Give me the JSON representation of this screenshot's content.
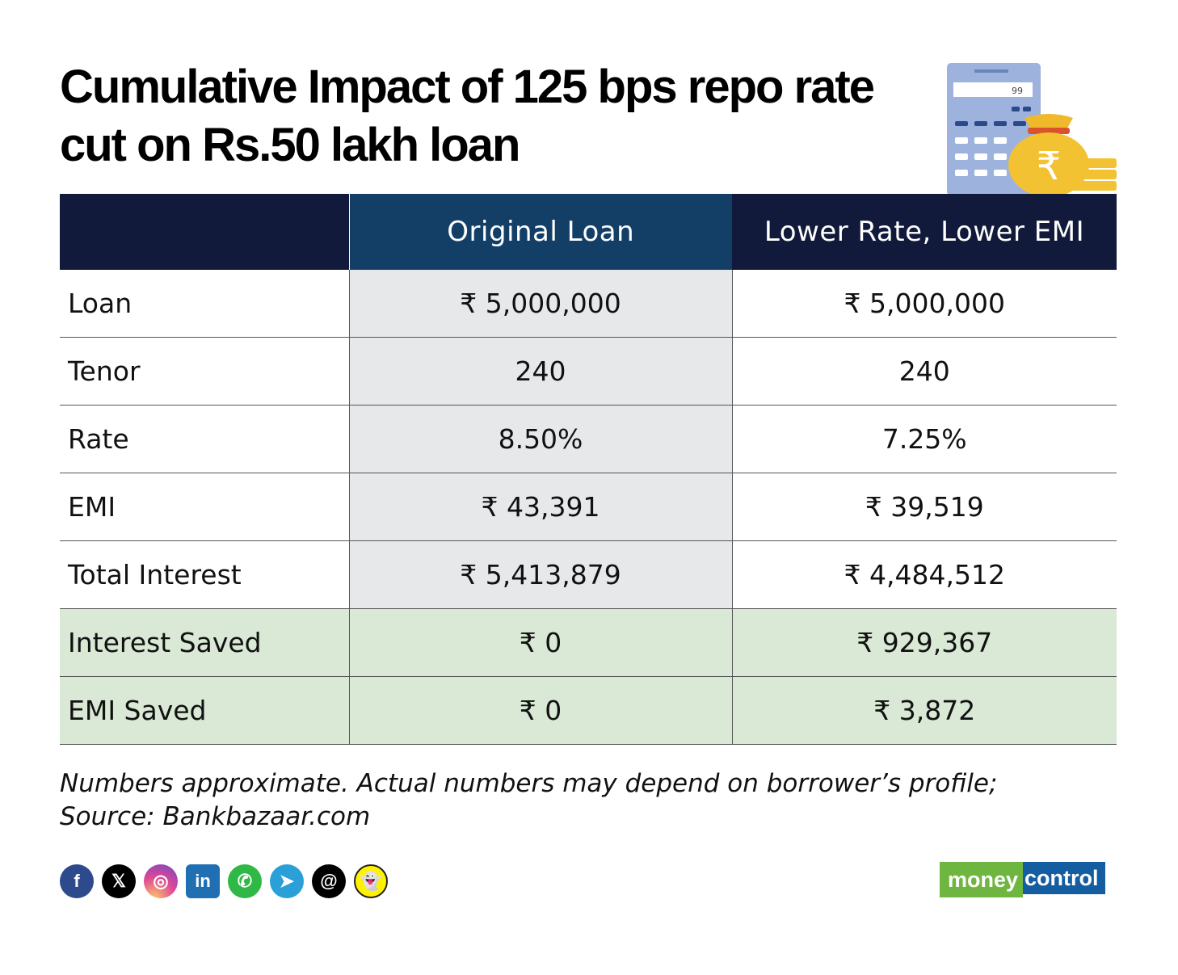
{
  "title": "Cumulative Impact of 125 bps repo rate cut on Rs.50 lakh loan",
  "illustration": {
    "display": "99",
    "rupee_symbol": "₹",
    "icon": "calculator-money-bag"
  },
  "table": {
    "headers": [
      "",
      "Original Loan",
      "Lower Rate, Lower EMI"
    ],
    "rows": [
      {
        "label": "Loan",
        "original": "₹ 5,000,000",
        "lower": "₹ 5,000,000"
      },
      {
        "label": "Tenor",
        "original": "240",
        "lower": "240"
      },
      {
        "label": "Rate",
        "original": "8.50%",
        "lower": "7.25%"
      },
      {
        "label": "EMI",
        "original": "₹ 43,391",
        "lower": "₹ 39,519"
      },
      {
        "label": "Total Interest",
        "original": "₹ 5,413,879",
        "lower": "₹ 4,484,512"
      },
      {
        "label": "Interest Saved",
        "original": "₹ 0",
        "lower": "₹ 929,367"
      },
      {
        "label": "EMI Saved",
        "original": "₹ 0",
        "lower": "₹ 3,872"
      }
    ]
  },
  "footnote": {
    "line1": "Numbers approximate. Actual numbers may depend on borrower’s profile;",
    "line2": "Source: Bankbazaar.com"
  },
  "social": [
    {
      "icon": "facebook-icon",
      "glyph": "f"
    },
    {
      "icon": "x-icon",
      "glyph": "𝕏"
    },
    {
      "icon": "instagram-icon",
      "glyph": "◎"
    },
    {
      "icon": "linkedin-icon",
      "glyph": "in"
    },
    {
      "icon": "whatsapp-icon",
      "glyph": "✆"
    },
    {
      "icon": "telegram-icon",
      "glyph": "➤"
    },
    {
      "icon": "threads-icon",
      "glyph": "@"
    },
    {
      "icon": "snapchat-icon",
      "glyph": "👻"
    }
  ],
  "logo": {
    "part1": "money",
    "part2": "control"
  },
  "colors": {
    "header_dark": "#111a3a",
    "header_blue": "#133f66",
    "grey_cell": "#e7e8ea",
    "green_row": "#d9e9d5",
    "logo_green": "#6fb640",
    "logo_blue": "#145da0"
  }
}
